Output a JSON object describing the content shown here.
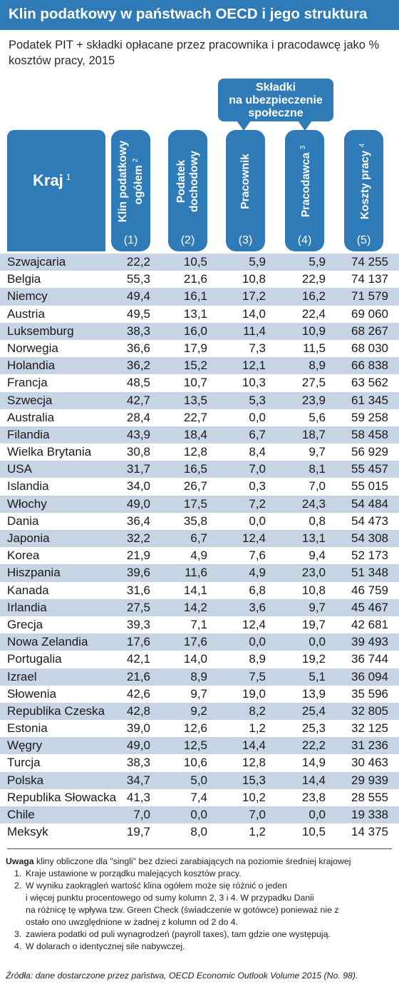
{
  "title": "Klin podatkowy w państwach OECD i jego struktura",
  "subtitle": "Podatek PIT + składki opłacane przez pracownika i pracodawcę jako % kosztów pracy, 2015",
  "callout": {
    "line1": "Składki",
    "line2": "na ubezpieczenie",
    "line3": "społeczne"
  },
  "columns": {
    "kraj": {
      "label": "Kraj",
      "sup": "1"
    },
    "c1": {
      "line1": "Klin podatkowy",
      "line2": "ogółem",
      "sup": "2",
      "num": "(1)"
    },
    "c2": {
      "line1": "Podatek",
      "line2": "dochodowy",
      "num": "(2)"
    },
    "c3": {
      "line1": "Pracownik",
      "num": "(3)"
    },
    "c4": {
      "line1": "Pracodawca",
      "sup": "3",
      "num": "(4)"
    },
    "c5": {
      "line1": "Koszty pracy",
      "sup": "4",
      "num": "(5)"
    }
  },
  "rows": [
    [
      "Szwajcaria",
      "22,2",
      "10,5",
      "5,9",
      "5,9",
      "74 255"
    ],
    [
      "Belgia",
      "55,3",
      "21,6",
      "10,8",
      "22,9",
      "74 137"
    ],
    [
      "Niemcy",
      "49,4",
      "16,1",
      "17,2",
      "16,2",
      "71 579"
    ],
    [
      "Austria",
      "49,5",
      "13,1",
      "14,0",
      "22,4",
      "69 060"
    ],
    [
      "Luksemburg",
      "38,3",
      "16,0",
      "11,4",
      "10,9",
      "68 267"
    ],
    [
      "Norwegia",
      "36,6",
      "17,9",
      "7,3",
      "11,5",
      "68 030"
    ],
    [
      "Holandia",
      "36,2",
      "15,2",
      "12,1",
      "8,9",
      "66 838"
    ],
    [
      "Francja",
      "48,5",
      "10,7",
      "10,3",
      "27,5",
      "63 562"
    ],
    [
      "Szwecja",
      "42,7",
      "13,5",
      "5,3",
      "23,9",
      "61 345"
    ],
    [
      "Australia",
      "28,4",
      "22,7",
      "0,0",
      "5,6",
      "59 258"
    ],
    [
      "Filandia",
      "43,9",
      "18,4",
      "6,7",
      "18,7",
      "58 458"
    ],
    [
      "Wielka Brytania",
      "30,8",
      "12,8",
      "8,4",
      "9,7",
      "56 929"
    ],
    [
      "USA",
      "31,7",
      "16,5",
      "7,0",
      "8,1",
      "55 457"
    ],
    [
      "Islandia",
      "34,0",
      "26,7",
      "0,3",
      "7,0",
      "55 015"
    ],
    [
      "Włochy",
      "49,0",
      "17,5",
      "7,2",
      "24,3",
      "54 484"
    ],
    [
      "Dania",
      "36,4",
      "35,8",
      "0,0",
      "0,8",
      "54 473"
    ],
    [
      "Japonia",
      "32,2",
      "6,7",
      "12,4",
      "13,1",
      "54 308"
    ],
    [
      "Korea",
      "21,9",
      "4,9",
      "7,6",
      "9,4",
      "52 173"
    ],
    [
      "Hiszpania",
      "39,6",
      "11,6",
      "4,9",
      "23,0",
      "51 348"
    ],
    [
      "Kanada",
      "31,6",
      "14,1",
      "6,8",
      "10,8",
      "46 759"
    ],
    [
      "Irlandia",
      "27,5",
      "14,2",
      "3,6",
      "9,7",
      "45 467"
    ],
    [
      "Grecja",
      "39,3",
      "7,1",
      "12,4",
      "19,7",
      "42 681"
    ],
    [
      "Nowa Zelandia",
      "17,6",
      "17,6",
      "0,0",
      "0,0",
      "39 493"
    ],
    [
      "Portugalia",
      "42,1",
      "14,0",
      "8,9",
      "19,2",
      "36 744"
    ],
    [
      "Izrael",
      "21,6",
      "8,9",
      "7,5",
      "5,1",
      "36 094"
    ],
    [
      "Słowenia",
      "42,6",
      "9,7",
      "19,0",
      "13,9",
      "35 596"
    ],
    [
      "Republika Czeska",
      "42,8",
      "9,2",
      "8,2",
      "25,4",
      "32 805"
    ],
    [
      "Estonia",
      "39,0",
      "12,6",
      "1,2",
      "25,3",
      "32 125"
    ],
    [
      "Węgry",
      "49,0",
      "12,5",
      "14,4",
      "22,2",
      "31 236"
    ],
    [
      "Turcja",
      "38,3",
      "10,6",
      "12,8",
      "14,9",
      "30 463"
    ],
    [
      "Polska",
      "34,7",
      "5,0",
      "15,3",
      "14,4",
      "29 939"
    ],
    [
      "Republika Słowacka",
      "41,3",
      "7,4",
      "10,2",
      "23,8",
      "28 555"
    ],
    [
      "Chile",
      "7,0",
      "0,0",
      "7,0",
      "0,0",
      "19 338"
    ],
    [
      "Meksyk",
      "19,7",
      "8,0",
      "1,2",
      "10,5",
      "14 375"
    ]
  ],
  "notes": {
    "uwaga_bold": "Uwaga",
    "uwaga_text": " kliny obliczone dla \"singli\" bez dzieci zarabiających na poziomie średniej krajowej",
    "items": [
      {
        "n": "1.",
        "lines": [
          "Kraje ustawione w porządku malejących kosztów pracy."
        ]
      },
      {
        "n": "2.",
        "lines": [
          "W wyniku zaokrągleń wartość klina ogółem może się różnić o jeden",
          "i więcej punktu procentowego od sumy kolumn 2, 3 i 4. W przypadku Danii",
          "na różnicę tę wpływa tzw. Green Check (świadczenie w gotówce) ponieważ nie z",
          "ostało ono uwzględnione w żadnej z kolumn od 2 do 4."
        ]
      },
      {
        "n": "3.",
        "lines": [
          "zawiera podatki od puli wynagrodzeń (payroll taxes), tam gdzie one występują."
        ]
      },
      {
        "n": "4.",
        "lines": [
          "W dolarach o identycznej sile nabywczej."
        ]
      }
    ]
  },
  "source": "Źródła: dane dostarczone przez państwa, OECD Economic Outlook Volume 2015 (No. 98).",
  "colors": {
    "accent": "#2f7bb8",
    "row_shade": "#c7d4e3"
  }
}
